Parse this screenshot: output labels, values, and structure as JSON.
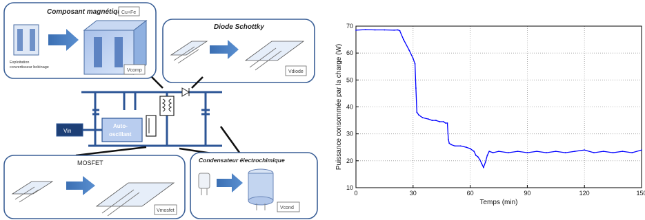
{
  "diagram": {
    "panels": {
      "magnetic": {
        "title": "Composant magnétique",
        "tag": "Cu+Fe",
        "volume": "Vcomp",
        "caption_line1": "Exploitation",
        "caption_line2": "convertisseur bobinage"
      },
      "schottky": {
        "title": "Diode Schottky",
        "volume": "Vdiode"
      },
      "mosfet": {
        "title": "MOSFET",
        "volume": "Vmosfet"
      },
      "capacitor": {
        "title": "Condensateur électrochimique",
        "volume": "Vcond"
      }
    },
    "controller_label_line1": "Auto-",
    "controller_label_line2": "oscillant",
    "source_label": "Vin"
  },
  "chart_data": {
    "type": "line",
    "title": "",
    "xlabel": "Temps (min)",
    "ylabel": "Puissance consommée par la charge (W)",
    "xlim": [
      0,
      150
    ],
    "ylim": [
      10,
      70
    ],
    "xticks": [
      0,
      30,
      60,
      90,
      120,
      150
    ],
    "yticks": [
      10,
      20,
      30,
      40,
      50,
      60,
      70
    ],
    "grid": true,
    "line_color": "#0000ff",
    "series": [
      {
        "name": "",
        "x": [
          0,
          5,
          10,
          15,
          20,
          22,
          23,
          25,
          28,
          30,
          31,
          31.5,
          32,
          33,
          35,
          38,
          40,
          42,
          44,
          46,
          47,
          48,
          48.5,
          49,
          50,
          52,
          55,
          58,
          60,
          62,
          63,
          64,
          65,
          66,
          67,
          68,
          69,
          70,
          72,
          75,
          80,
          85,
          90,
          95,
          100,
          105,
          110,
          115,
          120,
          125,
          130,
          135,
          140,
          145,
          150
        ],
        "values": [
          68.5,
          68.7,
          68.6,
          68.6,
          68.5,
          68.6,
          68.3,
          65,
          61,
          58,
          56,
          47,
          38,
          37,
          36,
          35.5,
          35,
          35,
          34.5,
          34.5,
          34,
          34,
          28,
          26.5,
          26,
          25.5,
          25.5,
          25,
          24.5,
          23.5,
          22,
          21.5,
          20.5,
          19,
          17.5,
          19.5,
          22,
          23.5,
          23,
          23.5,
          23,
          23.5,
          23,
          23.5,
          23,
          23.5,
          23,
          23.5,
          24,
          23,
          23.5,
          23,
          23.5,
          23,
          24
        ]
      }
    ]
  }
}
